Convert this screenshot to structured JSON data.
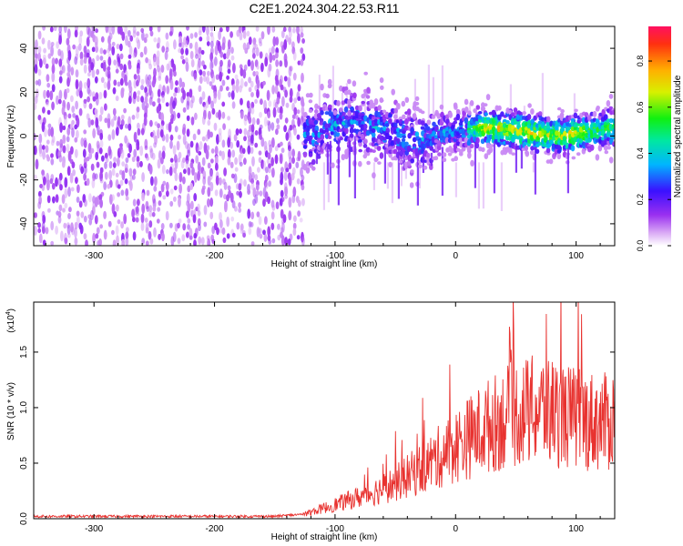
{
  "figure_title": "C2E1.2024.304.22.53.R11",
  "chart_data": [
    {
      "type": "heatmap",
      "xlabel": "Height of straight line (km)",
      "ylabel": "Frequency (Hz)",
      "xlim": [
        -350,
        132
      ],
      "ylim": [
        -50,
        50
      ],
      "x_ticks": [
        -300,
        -200,
        -100,
        0,
        100
      ],
      "y_ticks": [
        -40,
        -20,
        0,
        20,
        40
      ],
      "colorbar": {
        "label": "Normalized spectral amplitude",
        "range": [
          0.0,
          0.95
        ],
        "ticks": [
          "0.0",
          "0.2",
          "0.4",
          "0.6",
          "0.8"
        ],
        "colormap": "rainbow (white-magenta-purple-blue-cyan-green-yellow-orange-red)"
      },
      "regions": [
        {
          "x_range": [
            -350,
            -125
          ],
          "freq_range": [
            -50,
            50
          ],
          "amplitude": "low (0.0-0.15)",
          "character": "broadband speckle"
        },
        {
          "x_range": [
            -125,
            132
          ],
          "freq_range": [
            -30,
            25
          ],
          "amplitude": "0.1-0.9",
          "character": "band centred near 0 Hz, peaks 0.8-0.9 around 20 to 100 km"
        }
      ]
    },
    {
      "type": "line",
      "xlabel": "Height of straight line (km)",
      "ylabel": "SNR (10 * v/v)",
      "y_multiplier": "(x10^4)",
      "xlim": [
        -350,
        132
      ],
      "ylim": [
        0,
        1.95
      ],
      "x_ticks": [
        -300,
        -200,
        -100,
        0,
        100
      ],
      "y_ticks": [
        "0.0",
        "0.5",
        "1.0",
        "1.5"
      ],
      "line_color": "#e8322f",
      "series": [
        {
          "x": [
            -350,
            -300,
            -250,
            -200,
            -150,
            -125,
            -100,
            -75,
            -50,
            -25,
            0,
            25,
            50,
            75,
            100,
            125,
            132
          ],
          "y": [
            0.02,
            0.02,
            0.02,
            0.02,
            0.02,
            0.04,
            0.12,
            0.2,
            0.3,
            0.45,
            0.62,
            0.78,
            0.9,
            0.93,
            0.85,
            0.82,
            0.85
          ]
        }
      ]
    }
  ]
}
